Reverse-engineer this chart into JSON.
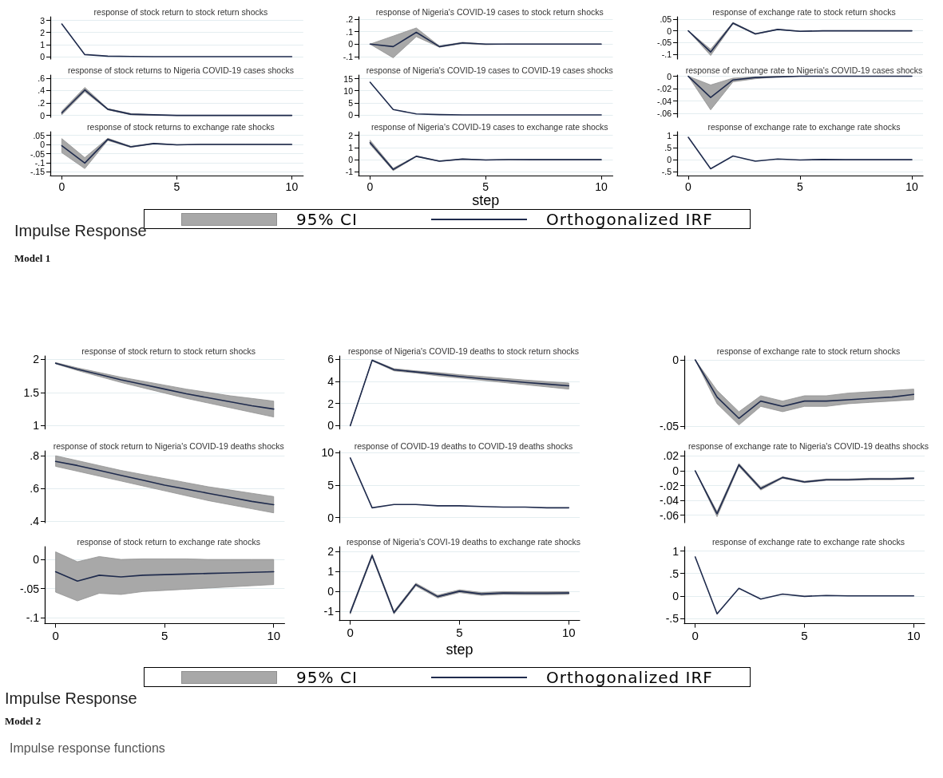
{
  "chart_data": [
    {
      "type": "line",
      "title": "response of stock return to stock return shocks",
      "x": [
        0,
        1,
        2,
        3,
        4,
        5,
        6,
        7,
        8,
        9,
        10
      ],
      "xlim": [
        -0.5,
        10.5
      ],
      "xticks": [
        0,
        5,
        10
      ],
      "ylim": [
        -0.2,
        3.3
      ],
      "yticks": [
        0,
        1,
        2,
        3
      ],
      "grid": "y",
      "tick_labels": "y",
      "series": [
        {
          "color": "#1f2b4d",
          "values": [
            2.7,
            0.17,
            0.04,
            0.01,
            0,
            0,
            0,
            0,
            0,
            0,
            0
          ]
        }
      ]
    },
    {
      "type": "line",
      "title": "response of Nigeria's COVID-19 cases to stock return shocks",
      "x": [
        0,
        1,
        2,
        3,
        4,
        5,
        6,
        7,
        8,
        9,
        10
      ],
      "xlim": [
        -0.5,
        10.5
      ],
      "xticks": [
        0,
        5,
        10
      ],
      "ylim": [
        -0.12,
        0.22
      ],
      "yticks": [
        {
          "value": -0.1,
          "label": "-.1"
        },
        0,
        {
          "value": 0.1,
          "label": ".1"
        },
        {
          "value": 0.2,
          "label": ".2"
        }
      ],
      "grid": "y",
      "tick_labels": "y",
      "series": [
        {
          "color": "#1f2b4d",
          "values": [
            0,
            -0.02,
            0.095,
            -0.02,
            0.01,
            0,
            0,
            0,
            0,
            0,
            0
          ],
          "lower": [
            0,
            -0.11,
            0.06,
            -0.025,
            0.005,
            -0.005,
            0,
            0,
            0,
            0,
            0
          ],
          "upper": [
            0,
            0.065,
            0.13,
            -0.015,
            0.015,
            0,
            0,
            0,
            0,
            0,
            0
          ]
        }
      ]
    },
    {
      "type": "line",
      "title": "response of exchange rate to stock return shocks",
      "x": [
        0,
        1,
        2,
        3,
        4,
        5,
        6,
        7,
        8,
        9,
        10
      ],
      "xlim": [
        -0.5,
        10.5
      ],
      "xticks": [
        0,
        5,
        10
      ],
      "ylim": [
        -0.12,
        0.06
      ],
      "yticks": [
        {
          "value": -0.1,
          "label": "-.1"
        },
        {
          "value": -0.05,
          "label": "-.05"
        },
        0,
        {
          "value": 0.05,
          "label": ".05"
        }
      ],
      "grid": "y",
      "tick_labels": "y",
      "series": [
        {
          "color": "#1f2b4d",
          "values": [
            0,
            -0.09,
            0.033,
            -0.013,
            0.006,
            -0.002,
            0,
            0,
            0,
            0,
            0
          ],
          "lower": [
            0,
            -0.105,
            0.03,
            -0.015,
            0.005,
            -0.003,
            0,
            0,
            0,
            0,
            0
          ],
          "upper": [
            0,
            -0.078,
            0.036,
            -0.011,
            0.007,
            -0.001,
            0,
            0,
            0,
            0,
            0
          ]
        }
      ]
    },
    {
      "type": "line",
      "title": "response of stock returns to Nigeria COVID-19 cases shocks",
      "x": [
        0,
        1,
        2,
        3,
        4,
        5,
        6,
        7,
        8,
        9,
        10
      ],
      "xlim": [
        -0.5,
        10.5
      ],
      "xticks": [
        0,
        5,
        10
      ],
      "ylim": [
        -0.03,
        0.65
      ],
      "yticks": [
        0,
        {
          "value": 0.2,
          "label": ".2"
        },
        {
          "value": 0.4,
          "label": ".4"
        },
        {
          "value": 0.6,
          "label": ".6"
        }
      ],
      "grid": "y",
      "tick_labels": "y",
      "series": [
        {
          "color": "#1f2b4d",
          "values": [
            0.04,
            0.41,
            0.1,
            0.02,
            0.01,
            0,
            0,
            0,
            0,
            0,
            0
          ],
          "lower": [
            0.01,
            0.38,
            0.09,
            0.01,
            0,
            0,
            0,
            0,
            0,
            0,
            0
          ],
          "upper": [
            0.07,
            0.45,
            0.11,
            0.03,
            0.01,
            0,
            0,
            0,
            0,
            0,
            0
          ]
        }
      ]
    },
    {
      "type": "line",
      "title": "response of Nigeria's COVID-19 cases to COVID-19 cases shocks",
      "x": [
        0,
        1,
        2,
        3,
        4,
        5,
        6,
        7,
        8,
        9,
        10
      ],
      "xlim": [
        -0.5,
        10.5
      ],
      "xticks": [
        0,
        5,
        10
      ],
      "ylim": [
        -1,
        16.5
      ],
      "yticks": [
        0,
        5,
        10,
        15
      ],
      "grid": "y",
      "tick_labels": "y",
      "series": [
        {
          "color": "#1f2b4d",
          "values": [
            13.5,
            2.2,
            0.4,
            0.1,
            0,
            0,
            0,
            0,
            0,
            0,
            0
          ]
        }
      ]
    },
    {
      "type": "line",
      "title": "response of exchange rate to Nigeria's COVID-19 cases shocks",
      "x": [
        0,
        1,
        2,
        3,
        4,
        5,
        6,
        7,
        8,
        9,
        10
      ],
      "xlim": [
        -0.5,
        10.5
      ],
      "xticks": [
        0,
        5,
        10
      ],
      "ylim": [
        -0.066,
        0.002
      ],
      "yticks": [
        {
          "value": -0.06,
          "label": "-.06"
        },
        {
          "value": -0.04,
          "label": "-.04"
        },
        {
          "value": -0.02,
          "label": "-.02"
        },
        0
      ],
      "grid": "y",
      "tick_labels": "y",
      "series": [
        {
          "color": "#1f2b4d",
          "values": [
            0,
            -0.034,
            -0.006,
            -0.002,
            -0.001,
            0,
            0,
            0,
            0,
            0,
            0
          ],
          "lower": [
            0,
            -0.054,
            -0.009,
            -0.004,
            -0.001,
            0,
            0,
            0,
            0,
            0,
            0
          ],
          "upper": [
            0,
            -0.014,
            -0.003,
            -0.001,
            0,
            0,
            0,
            0,
            0,
            0,
            0
          ]
        }
      ]
    },
    {
      "type": "line",
      "title": "response of stock returns to exchange rate shocks",
      "x": [
        0,
        1,
        2,
        3,
        4,
        5,
        6,
        7,
        8,
        9,
        10
      ],
      "xlim": [
        -0.5,
        10.5
      ],
      "xticks": [
        0,
        5,
        10
      ],
      "ylim": [
        -0.17,
        0.07
      ],
      "yticks": [
        {
          "value": -0.15,
          "label": "-.15"
        },
        {
          "value": -0.1,
          "label": "-.1"
        },
        {
          "value": -0.05,
          "label": "-.05"
        },
        0,
        {
          "value": 0.05,
          "label": ".05"
        }
      ],
      "grid": "y",
      "series": [
        {
          "color": "#1f2b4d",
          "values": [
            -0.007,
            -0.102,
            0.028,
            -0.013,
            0.005,
            -0.002,
            0,
            0,
            0,
            0,
            0
          ],
          "lower": [
            -0.045,
            -0.132,
            0.022,
            -0.016,
            0.003,
            -0.003,
            0,
            0,
            0,
            0,
            0
          ],
          "upper": [
            0.032,
            -0.072,
            0.034,
            -0.01,
            0.007,
            -0.001,
            0,
            0,
            0,
            0,
            0
          ]
        }
      ]
    },
    {
      "type": "line",
      "title": "response of Nigeria's COVID-19 cases to exchange rate shocks",
      "xlabel": "step",
      "legend": "bottom",
      "annotations": [
        "95% CI",
        "Impulse Response",
        "Model 1"
      ],
      "x": [
        0,
        1,
        2,
        3,
        4,
        5,
        6,
        7,
        8,
        9,
        10
      ],
      "xlim": [
        -0.5,
        10.5
      ],
      "xticks": [
        0,
        5,
        10
      ],
      "ylim": [
        -1.3,
        2.3
      ],
      "yticks": [
        -1,
        0,
        1,
        2
      ],
      "grid": "y",
      "series": [
        {
          "name": "Orthogonalized IRF",
          "color": "#1f2b4d",
          "values": [
            1.4,
            -0.8,
            0.28,
            -0.12,
            0.05,
            -0.02,
            0.01,
            0,
            0,
            0,
            0
          ],
          "lower": [
            1.25,
            -0.9,
            0.25,
            -0.14,
            0.03,
            -0.03,
            0,
            0,
            0,
            0,
            0
          ],
          "upper": [
            1.6,
            -0.7,
            0.31,
            -0.1,
            0.07,
            -0.01,
            0.02,
            0,
            0,
            0,
            0
          ]
        }
      ]
    },
    {
      "type": "line",
      "title": "response of exchange rate to exchange rate shocks",
      "x": [
        0,
        1,
        2,
        3,
        4,
        5,
        6,
        7,
        8,
        9,
        10
      ],
      "xlim": [
        -0.5,
        10.5
      ],
      "xticks": [
        0,
        5,
        10
      ],
      "ylim": [
        -0.65,
        1.15
      ],
      "yticks": [
        {
          "value": -0.5,
          "label": "-.5"
        },
        0,
        {
          "value": 0.5,
          "label": ".5"
        },
        1
      ],
      "grid": "y",
      "series": [
        {
          "color": "#1f2b4d",
          "values": [
            0.92,
            -0.37,
            0.15,
            -0.06,
            0.03,
            -0.01,
            0.01,
            0,
            0,
            0,
            0
          ]
        }
      ]
    },
    {
      "type": "line",
      "title": "response of stock return to stock return shocks",
      "x": [
        0,
        1,
        2,
        3,
        4,
        5,
        6,
        7,
        8,
        9,
        10
      ],
      "xlim": [
        -0.5,
        10.5
      ],
      "xticks": [
        0,
        5,
        10
      ],
      "ylim": [
        0.95,
        2.05
      ],
      "yticks": [
        1,
        1.5,
        2
      ],
      "grid": "y",
      "tick_labels": "y",
      "series": [
        {
          "color": "#1f2b4d",
          "values": [
            1.94,
            1.85,
            1.77,
            1.69,
            1.62,
            1.55,
            1.48,
            1.42,
            1.36,
            1.3,
            1.25
          ],
          "lower": [
            1.93,
            1.83,
            1.74,
            1.65,
            1.57,
            1.49,
            1.41,
            1.34,
            1.27,
            1.2,
            1.13
          ],
          "upper": [
            1.95,
            1.87,
            1.8,
            1.73,
            1.67,
            1.61,
            1.55,
            1.5,
            1.45,
            1.41,
            1.37
          ]
        }
      ]
    },
    {
      "type": "line",
      "title": "response of Nigeria's COVID-19 deaths to stock return shocks",
      "x": [
        0,
        1,
        2,
        3,
        4,
        5,
        6,
        7,
        8,
        9,
        10
      ],
      "xlim": [
        -0.5,
        10.5
      ],
      "xticks": [
        0,
        5,
        10
      ],
      "ylim": [
        -0.3,
        6.3
      ],
      "yticks": [
        0,
        2,
        4,
        6
      ],
      "grid": "y",
      "tick_labels": "y",
      "series": [
        {
          "color": "#1f2b4d",
          "values": [
            0,
            5.9,
            5.05,
            4.85,
            4.65,
            4.45,
            4.25,
            4.08,
            3.9,
            3.75,
            3.6
          ],
          "lower": [
            0,
            5.85,
            4.95,
            4.75,
            4.5,
            4.3,
            4.1,
            3.9,
            3.7,
            3.5,
            3.3
          ],
          "upper": [
            0,
            5.95,
            5.15,
            4.95,
            4.8,
            4.6,
            4.45,
            4.28,
            4.12,
            3.98,
            3.85
          ]
        }
      ]
    },
    {
      "type": "line",
      "title": "response of exchange rate to stock return shocks",
      "x": [
        0,
        1,
        2,
        3,
        4,
        5,
        6,
        7,
        8,
        9,
        10
      ],
      "xlim": [
        -0.5,
        10.5
      ],
      "xticks": [
        0,
        5,
        10
      ],
      "ylim": [
        -0.052,
        0.003
      ],
      "yticks": [
        {
          "value": -0.05,
          "label": "-.05"
        },
        0
      ],
      "grid": "y",
      "tick_labels": "y",
      "series": [
        {
          "color": "#1f2b4d",
          "values": [
            0,
            -0.028,
            -0.044,
            -0.031,
            -0.035,
            -0.031,
            -0.031,
            -0.03,
            -0.029,
            -0.028,
            -0.026
          ],
          "lower": [
            0,
            -0.033,
            -0.049,
            -0.035,
            -0.039,
            -0.035,
            -0.035,
            -0.033,
            -0.032,
            -0.031,
            -0.03
          ],
          "upper": [
            0,
            -0.023,
            -0.039,
            -0.027,
            -0.031,
            -0.027,
            -0.027,
            -0.025,
            -0.024,
            -0.023,
            -0.022
          ]
        }
      ]
    },
    {
      "type": "line",
      "title": "response of stock return to Nigeria's COVID-19 deaths shocks",
      "x": [
        0,
        1,
        2,
        3,
        4,
        5,
        6,
        7,
        8,
        9,
        10
      ],
      "xlim": [
        -0.5,
        10.5
      ],
      "xticks": [
        0,
        5,
        10
      ],
      "ylim": [
        0.39,
        0.83
      ],
      "yticks": [
        {
          "value": 0.4,
          "label": ".4"
        },
        {
          "value": 0.6,
          "label": ".6"
        },
        {
          "value": 0.8,
          "label": ".8"
        }
      ],
      "grid": "y",
      "tick_labels": "y",
      "series": [
        {
          "color": "#1f2b4d",
          "values": [
            0.765,
            0.74,
            0.71,
            0.68,
            0.65,
            0.62,
            0.595,
            0.57,
            0.545,
            0.52,
            0.5
          ],
          "lower": [
            0.735,
            0.705,
            0.675,
            0.645,
            0.615,
            0.585,
            0.555,
            0.525,
            0.5,
            0.475,
            0.45
          ],
          "upper": [
            0.8,
            0.77,
            0.74,
            0.71,
            0.685,
            0.66,
            0.635,
            0.61,
            0.59,
            0.57,
            0.55
          ]
        }
      ]
    },
    {
      "type": "line",
      "title": "response of COVID-19 deaths to COVID-19 deaths shocks",
      "x": [
        0,
        1,
        2,
        3,
        4,
        5,
        6,
        7,
        8,
        9,
        10
      ],
      "xlim": [
        -0.5,
        10.5
      ],
      "xticks": [
        0,
        5,
        10
      ],
      "ylim": [
        -0.8,
        10.3
      ],
      "yticks": [
        0,
        5,
        10
      ],
      "grid": "y",
      "tick_labels": "y",
      "series": [
        {
          "color": "#1f2b4d",
          "values": [
            9.2,
            1.5,
            2,
            2,
            1.8,
            1.8,
            1.7,
            1.6,
            1.6,
            1.5,
            1.5
          ]
        }
      ]
    },
    {
      "type": "line",
      "title": "response of exchange rate to Nigeria's COVID-19 deaths shocks",
      "x": [
        0,
        1,
        2,
        3,
        4,
        5,
        6,
        7,
        8,
        9,
        10
      ],
      "xlim": [
        -0.5,
        10.5
      ],
      "xticks": [
        0,
        5,
        10
      ],
      "ylim": [
        -0.07,
        0.027
      ],
      "yticks": [
        {
          "value": -0.06,
          "label": "-.06"
        },
        {
          "value": -0.04,
          "label": "-.04"
        },
        {
          "value": -0.02,
          "label": "-.02"
        },
        0,
        {
          "value": 0.02,
          "label": ".02"
        }
      ],
      "grid": "y",
      "tick_labels": "y",
      "series": [
        {
          "color": "#1f2b4d",
          "values": [
            0,
            -0.058,
            0.008,
            -0.024,
            -0.009,
            -0.015,
            -0.012,
            -0.012,
            -0.011,
            -0.011,
            -0.01
          ],
          "lower": [
            0,
            -0.062,
            0.006,
            -0.026,
            -0.01,
            -0.016,
            -0.013,
            -0.013,
            -0.012,
            -0.012,
            -0.011
          ],
          "upper": [
            0,
            -0.055,
            0.01,
            -0.022,
            -0.008,
            -0.014,
            -0.011,
            -0.011,
            -0.01,
            -0.01,
            -0.009
          ]
        }
      ]
    },
    {
      "type": "line",
      "title": "response of stock return to exchange rate shocks",
      "x": [
        0,
        1,
        2,
        3,
        4,
        5,
        6,
        7,
        8,
        9,
        10
      ],
      "xlim": [
        -0.5,
        10.5
      ],
      "xticks": [
        0,
        5,
        10
      ],
      "ylim": [
        -0.11,
        0.022
      ],
      "yticks": [
        {
          "value": -0.1,
          "label": "-.1"
        },
        {
          "value": -0.05,
          "label": "-.05"
        },
        0
      ],
      "grid": "y",
      "series": [
        {
          "color": "#1f2b4d",
          "values": [
            -0.021,
            -0.037,
            -0.027,
            -0.03,
            -0.027,
            -0.026,
            -0.025,
            -0.024,
            -0.023,
            -0.022,
            -0.021
          ],
          "lower": [
            -0.056,
            -0.071,
            -0.058,
            -0.06,
            -0.055,
            -0.053,
            -0.051,
            -0.049,
            -0.047,
            -0.045,
            -0.043
          ],
          "upper": [
            0.013,
            -0.004,
            0.005,
            0,
            0.001,
            0.001,
            0.001,
            0,
            0,
            0,
            0
          ]
        }
      ]
    },
    {
      "type": "line",
      "title": "response of Nigeria's COVI-19 deaths to exchange rate shocks",
      "xlabel": "step",
      "legend": "bottom",
      "annotations": [
        "95% CI",
        "Impulse Response",
        "Model 2",
        "Impulse response functions"
      ],
      "x": [
        0,
        1,
        2,
        3,
        4,
        5,
        6,
        7,
        8,
        9,
        10
      ],
      "xlim": [
        -0.5,
        10.5
      ],
      "xticks": [
        0,
        5,
        10
      ],
      "ylim": [
        -1.45,
        2.25
      ],
      "yticks": [
        -1,
        0,
        1,
        2
      ],
      "grid": "y",
      "series": [
        {
          "name": "Orthogonalized IRF",
          "color": "#1f2b4d",
          "values": [
            -1.05,
            1.8,
            -1.05,
            0.35,
            -0.25,
            0.02,
            -0.12,
            -0.07,
            -0.08,
            -0.08,
            -0.07
          ],
          "lower": [
            -1.12,
            1.73,
            -1.12,
            0.28,
            -0.32,
            -0.05,
            -0.19,
            -0.14,
            -0.15,
            -0.15,
            -0.14
          ],
          "upper": [
            -0.98,
            1.87,
            -0.98,
            0.42,
            -0.18,
            0.09,
            -0.05,
            0,
            -0.01,
            -0.01,
            0
          ]
        }
      ]
    },
    {
      "type": "line",
      "title": "response of exchange rate to exchange rate shocks",
      "x": [
        0,
        1,
        2,
        3,
        4,
        5,
        6,
        7,
        8,
        9,
        10
      ],
      "xlim": [
        -0.5,
        10.5
      ],
      "xticks": [
        0,
        5,
        10
      ],
      "ylim": [
        -0.62,
        1.1
      ],
      "yticks": [
        {
          "value": -0.5,
          "label": "-.5"
        },
        0,
        {
          "value": 0.5,
          "label": ".5"
        },
        1
      ],
      "grid": "y",
      "series": [
        {
          "color": "#1f2b4d",
          "values": [
            0.87,
            -0.4,
            0.17,
            -0.07,
            0.04,
            -0.01,
            0.01,
            0,
            0,
            0,
            0
          ]
        }
      ]
    }
  ]
}
